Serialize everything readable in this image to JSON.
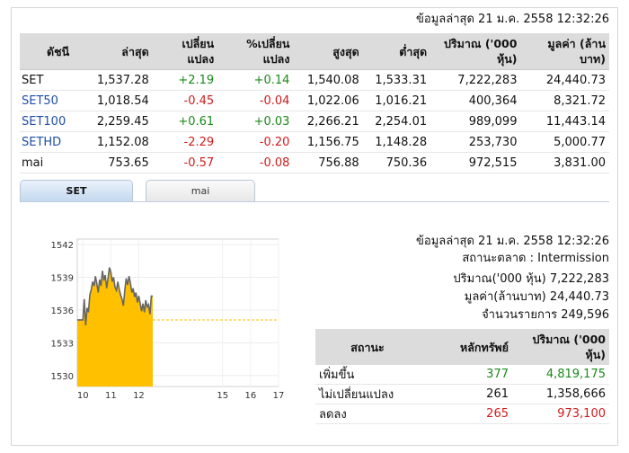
{
  "top_timestamp": "ข้อมูลล่าสุด 21 ม.ค. 2558 12:32:26",
  "table": {
    "headers": [
      "ดัชนี",
      "ล่าสุด",
      "เปลี่ยน แปลง",
      "%เปลี่ยน แปลง",
      "สูงสุด",
      "ต่ำสุด",
      "ปริมาณ ('000 หุ้น)",
      "มูลค่า (ล้านบาท)"
    ],
    "rows": [
      {
        "name": "SET",
        "last": "1,537.28",
        "chg": "+2.19",
        "pct": "+0.14",
        "high": "1,540.08",
        "low": "1,533.31",
        "vol": "7,222,283",
        "val": "24,440.73"
      },
      {
        "name": "SET50",
        "last": "1,018.54",
        "chg": "-0.45",
        "pct": "-0.04",
        "high": "1,022.06",
        "low": "1,016.21",
        "vol": "400,364",
        "val": "8,321.72"
      },
      {
        "name": "SET100",
        "last": "2,259.45",
        "chg": "+0.61",
        "pct": "+0.03",
        "high": "2,266.21",
        "low": "2,254.01",
        "vol": "989,099",
        "val": "11,443.14"
      },
      {
        "name": "SETHD",
        "last": "1,152.08",
        "chg": "-2.29",
        "pct": "-0.20",
        "high": "1,156.75",
        "low": "1,148.28",
        "vol": "253,730",
        "val": "5,000.77"
      },
      {
        "name": "mai",
        "last": "753.65",
        "chg": "-0.57",
        "pct": "-0.08",
        "high": "756.88",
        "low": "750.36",
        "vol": "972,515",
        "val": "3,831.00"
      }
    ]
  },
  "tabs": [
    "SET",
    "mai"
  ],
  "info": {
    "timestamp": "ข้อมูลล่าสุด 21 ม.ค. 2558 12:32:26",
    "status": "สถานะตลาด : Intermission",
    "volume": "ปริมาณ('000 หุ้น) 7,222,283",
    "value": "มูลค่า(ล้านบาท) 24,440.73",
    "trades": "จำนวนรายการ 249,596"
  },
  "stat_table": {
    "headers": [
      "สถานะ",
      "หลักทรัพย์",
      "ปริมาณ ('000 หุ้น)"
    ],
    "rows": [
      {
        "label": "เพิ่มขึ้น",
        "count": "377",
        "volume": "4,819,175",
        "color": "#1a8a1a"
      },
      {
        "label": "ไม่เปลี่ยนแปลง",
        "count": "261",
        "volume": "1,358,666",
        "color": "#111111"
      },
      {
        "label": "ลดลง",
        "count": "265",
        "volume": "973,100",
        "color": "#d01c1c"
      }
    ]
  },
  "colors": {
    "up": "#1a8a1a",
    "down": "#d01c1c",
    "link": "#1f4ea6",
    "fill": "#ffc000",
    "line": "#666666"
  },
  "chart_data": {
    "type": "area",
    "x_ticks": [
      "10",
      "11",
      "12",
      "15",
      "16",
      "17"
    ],
    "y_ticks": [
      "1542",
      "1539",
      "1536",
      "1533",
      "1530"
    ],
    "ylim": [
      1529,
      1542.5
    ],
    "xlim": [
      9.8,
      17
    ],
    "reference_value": 1535.09,
    "x": [
      9.8,
      10.0,
      10.05,
      10.1,
      10.15,
      10.2,
      10.25,
      10.3,
      10.35,
      10.4,
      10.45,
      10.5,
      10.55,
      10.6,
      10.65,
      10.7,
      10.75,
      10.8,
      10.85,
      10.9,
      10.95,
      11.0,
      11.05,
      11.1,
      11.15,
      11.2,
      11.25,
      11.3,
      11.35,
      11.4,
      11.45,
      11.5,
      11.55,
      11.6,
      11.65,
      11.7,
      11.75,
      11.8,
      11.85,
      11.9,
      11.95,
      12.0,
      12.05,
      12.1,
      12.15,
      12.2,
      12.25,
      12.3,
      12.35,
      12.4,
      12.45,
      12.5
    ],
    "y": [
      1535.1,
      1535.1,
      1537.0,
      1534.6,
      1536.2,
      1535.8,
      1537.4,
      1537.9,
      1538.6,
      1538.2,
      1539.1,
      1538.4,
      1537.6,
      1538.8,
      1538.2,
      1539.6,
      1538.7,
      1539.2,
      1538.0,
      1538.9,
      1539.9,
      1539.5,
      1538.6,
      1539.0,
      1538.1,
      1537.8,
      1538.6,
      1537.9,
      1537.4,
      1537.0,
      1536.4,
      1537.8,
      1538.9,
      1538.3,
      1539.1,
      1538.5,
      1537.6,
      1538.0,
      1537.2,
      1537.6,
      1536.7,
      1537.3,
      1536.6,
      1535.9,
      1536.6,
      1535.8,
      1536.9,
      1536.3,
      1536.5,
      1535.6,
      1537.28,
      1537.28
    ]
  }
}
